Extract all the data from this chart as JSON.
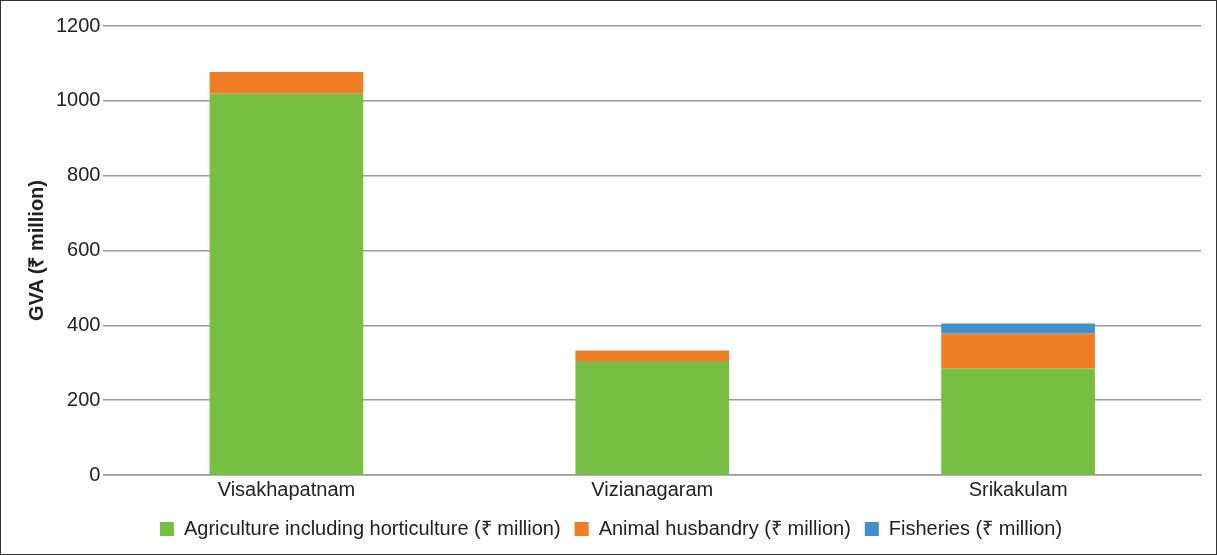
{
  "chart_data": {
    "type": "bar",
    "stacked": true,
    "ylabel": "GVA (₹ million)",
    "categories": [
      "Visakhapatnam",
      "Vizianagaram",
      "Srikakulam"
    ],
    "series": [
      {
        "name": "Agriculture including horticulture (₹ million)",
        "color": "#77bf43",
        "values": [
          1020,
          305,
          285
        ]
      },
      {
        "name": "Animal husbandry (₹ million)",
        "color": "#ee7d23",
        "values": [
          57,
          28,
          94
        ]
      },
      {
        "name": "Fisheries (₹ million)",
        "color": "#418fcc",
        "values": [
          0,
          0,
          26
        ]
      }
    ],
    "ylim": [
      0,
      1200
    ],
    "yticks": [
      0,
      200,
      400,
      600,
      800,
      1000,
      1200
    ],
    "grid": "y",
    "legend": "bottom"
  }
}
